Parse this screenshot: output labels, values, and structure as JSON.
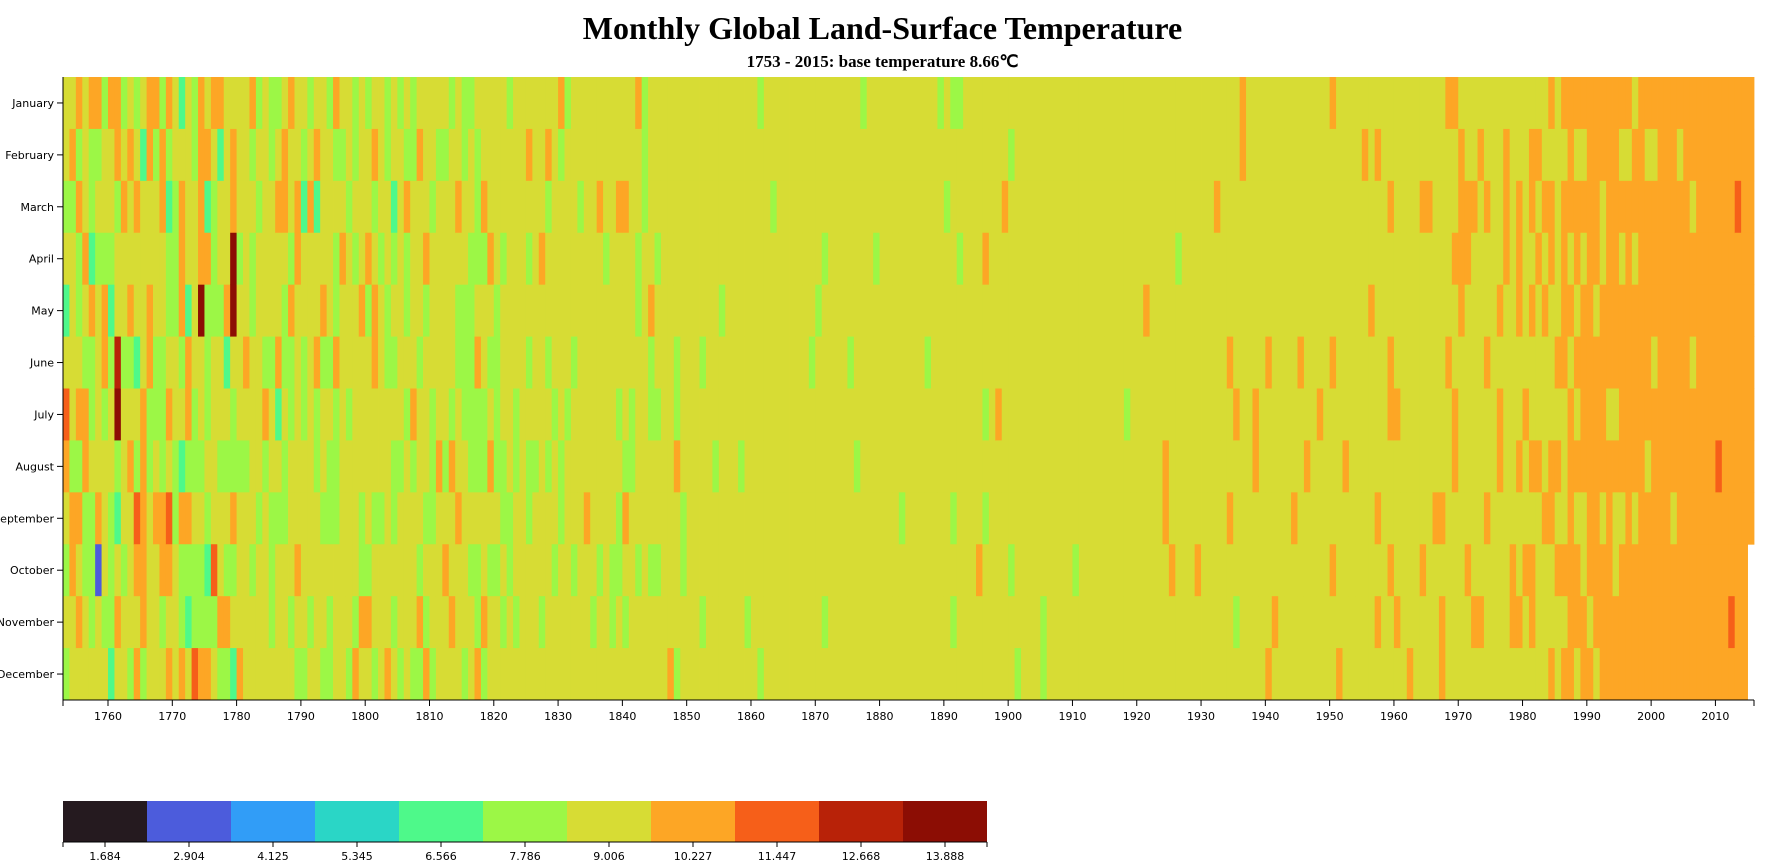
{
  "chart_data": {
    "type": "heatmap",
    "title": "Monthly Global Land-Surface Temperature",
    "subtitle": "1753 - 2015: base temperature 8.66℃",
    "base_temperature": 8.66,
    "x_range": [
      1753,
      2015
    ],
    "x_ticks": [
      1760,
      1770,
      1780,
      1790,
      1800,
      1810,
      1820,
      1830,
      1840,
      1850,
      1860,
      1870,
      1880,
      1890,
      1900,
      1910,
      1920,
      1930,
      1940,
      1950,
      1960,
      1970,
      1980,
      1990,
      2000,
      2010
    ],
    "months": [
      "January",
      "February",
      "March",
      "April",
      "May",
      "June",
      "July",
      "August",
      "September",
      "October",
      "November",
      "December"
    ],
    "last_year_months_present": 9,
    "hot_cells": [
      {
        "year": 1774,
        "month": 5,
        "temp": 13.9
      },
      {
        "year": 1779,
        "month": 4,
        "temp": 13.9
      },
      {
        "year": 1779,
        "month": 5,
        "temp": 13.9
      },
      {
        "year": 1761,
        "month": 7,
        "temp": 13.5
      },
      {
        "year": 1761,
        "month": 6,
        "temp": 12.4
      },
      {
        "year": 1758,
        "month": 10,
        "temp": 1.7
      }
    ],
    "legend": {
      "thresholds": [
        "1.684",
        "2.904",
        "4.125",
        "5.345",
        "6.566",
        "7.786",
        "9.006",
        "10.227",
        "11.447",
        "12.668",
        "13.888"
      ],
      "colors": [
        "#251a1f",
        "#4c5cdc",
        "#319df7",
        "#2ad6c6",
        "#4ef98a",
        "#9cf746",
        "#d7dc34",
        "#fda625",
        "#f65f19",
        "#b82208",
        "#8c0d04"
      ]
    }
  }
}
